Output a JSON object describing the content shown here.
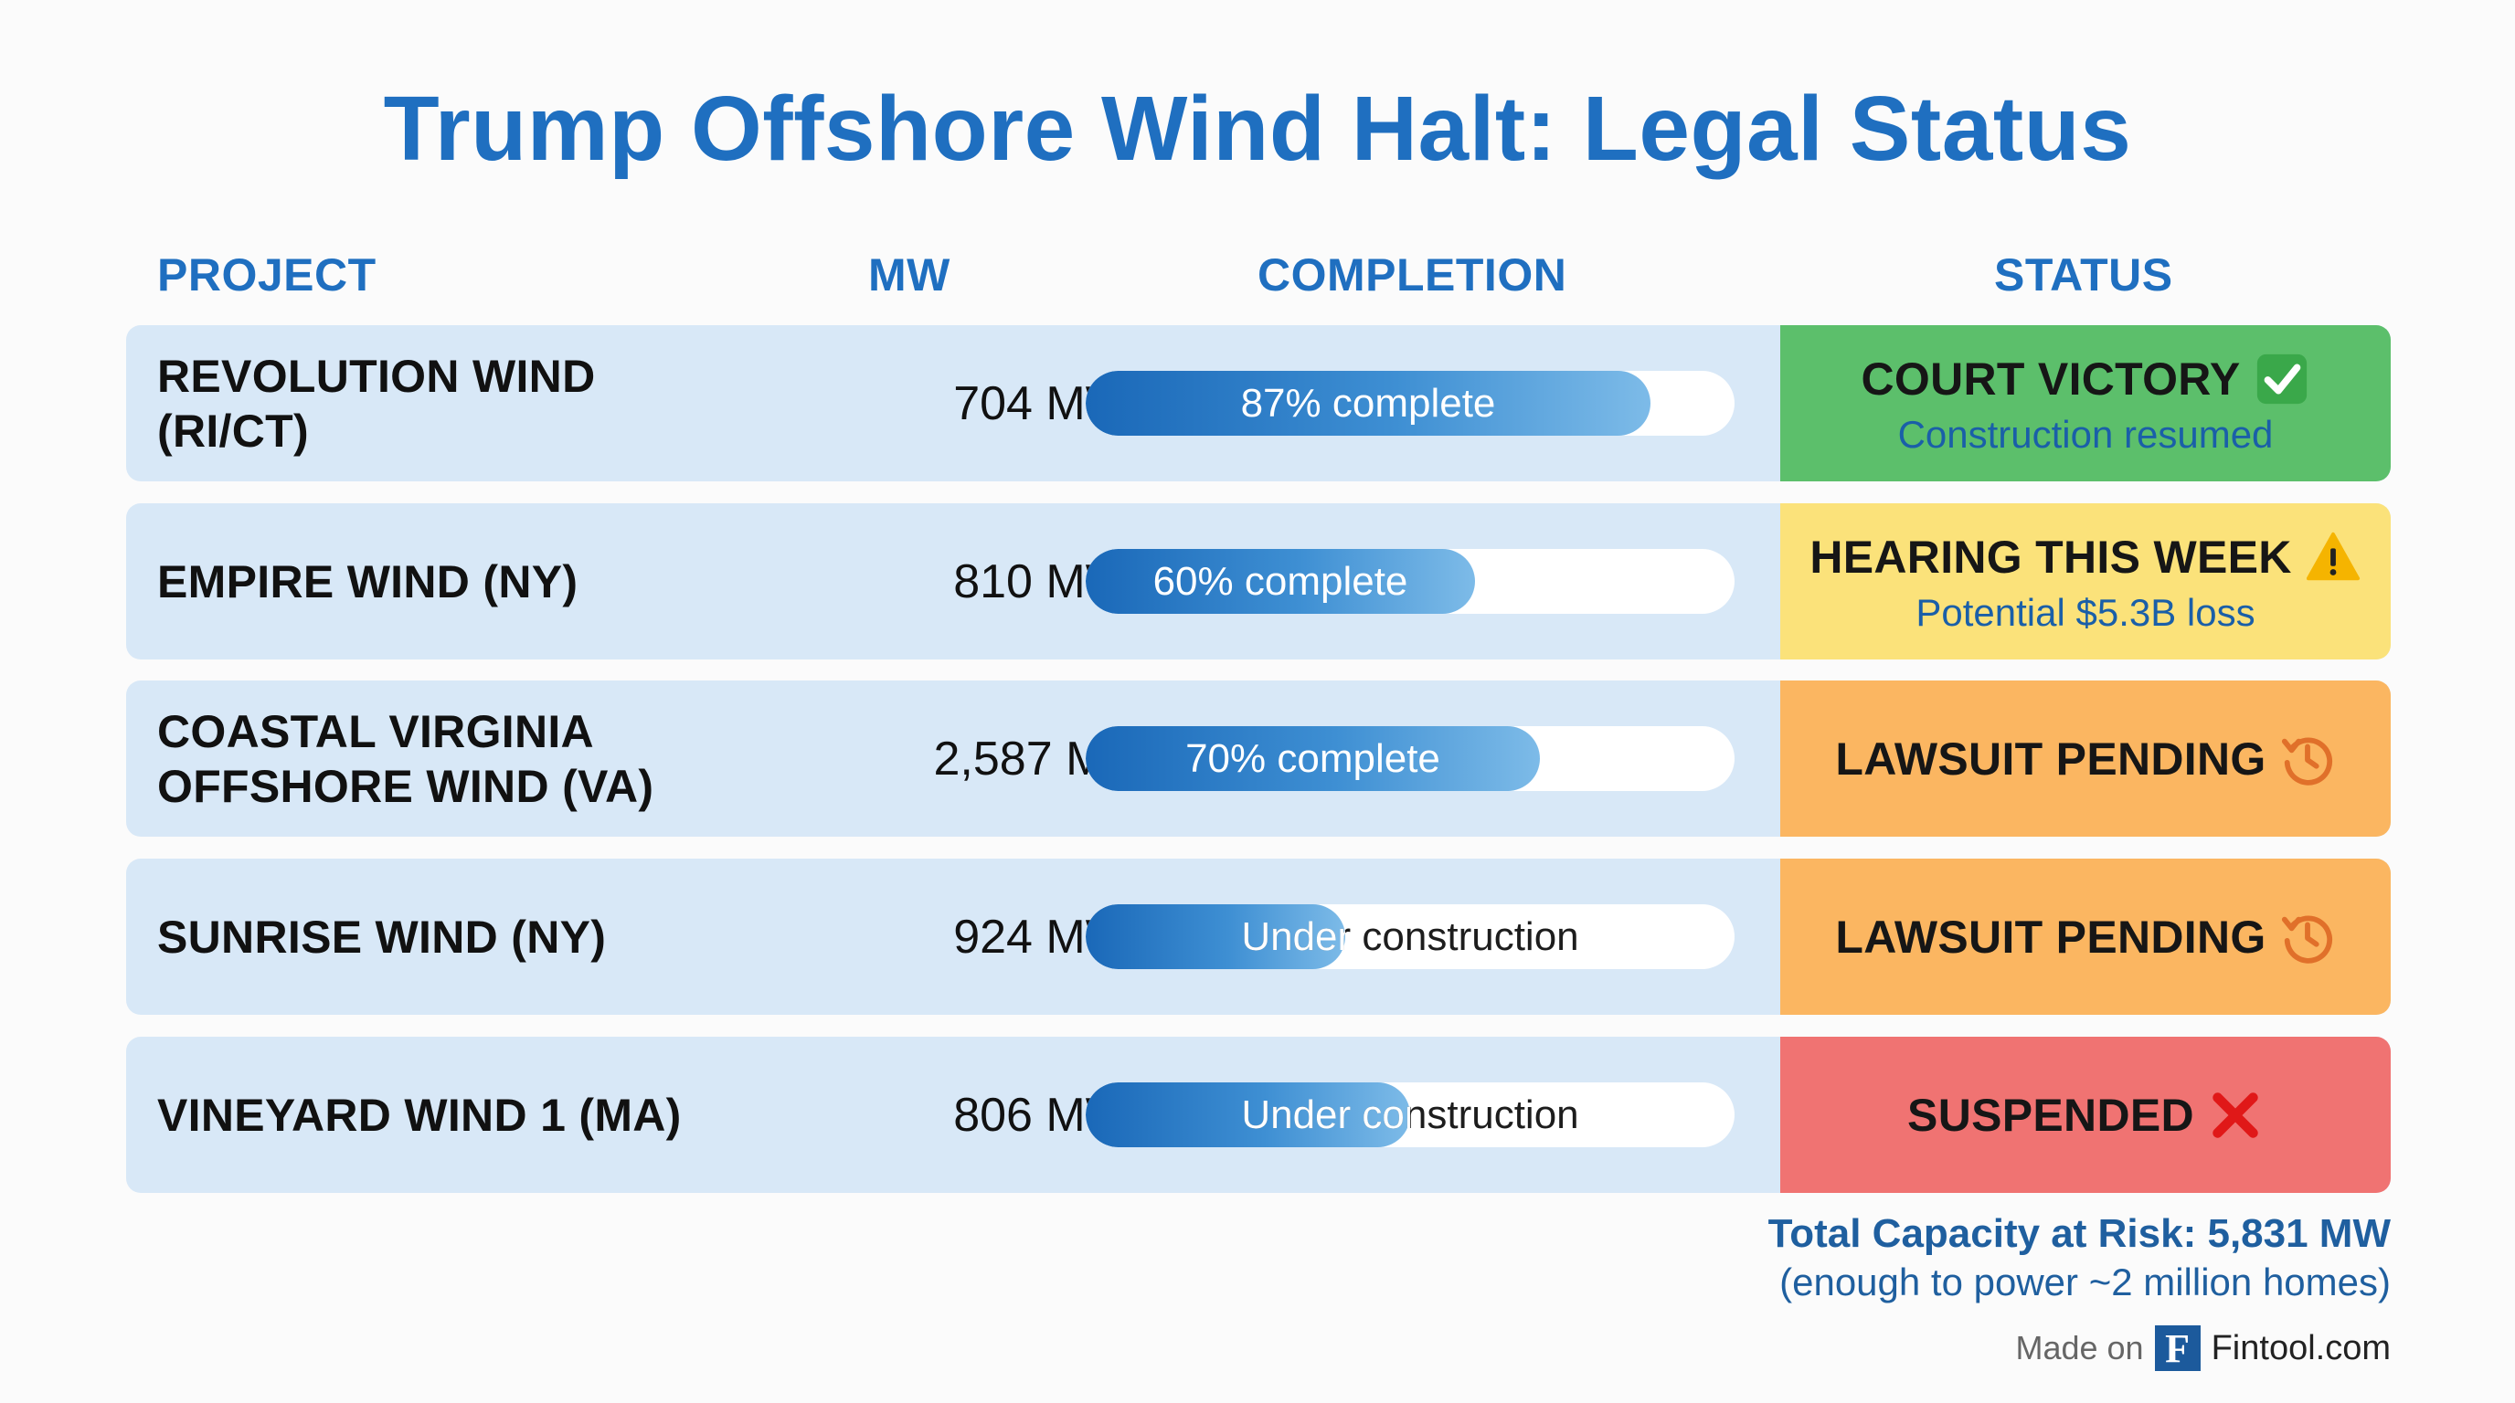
{
  "title": "Trump Offshore Wind Halt: Legal Status",
  "headers": {
    "project": "PROJECT",
    "mw": "MW",
    "completion": "COMPLETION",
    "status": "STATUS"
  },
  "chart_data": {
    "type": "table",
    "title": "Trump Offshore Wind Halt: Legal Status",
    "columns": [
      "PROJECT",
      "MW",
      "COMPLETION",
      "STATUS"
    ],
    "rows": [
      {
        "project_lines": [
          "REVOLUTION WIND",
          "(RI/CT)"
        ],
        "mw": "704 MW",
        "completion_pct": 87,
        "completion_label": "87% complete",
        "status": "COURT VICTORY",
        "status_icon": "check-icon",
        "status_sub": "Construction resumed",
        "status_color": "#5cbf6b",
        "sub_color": "#1a5fa8"
      },
      {
        "project_lines": [
          "EMPIRE WIND (NY)"
        ],
        "mw": "810 MW",
        "completion_pct": 60,
        "completion_label": "60% complete",
        "status": "HEARING THIS WEEK",
        "status_icon": "warning-icon",
        "status_sub": "Potential $5.3B loss",
        "status_color": "#fbe27a",
        "sub_color": "#1a5fa8"
      },
      {
        "project_lines": [
          "COASTAL VIRGINIA",
          "OFFSHORE WIND (VA)"
        ],
        "mw": "2,587 MW",
        "completion_pct": 70,
        "completion_label": "70% complete",
        "status": "LAWSUIT PENDING",
        "status_icon": "history-clock-icon",
        "status_sub": "",
        "status_color": "#fbb661",
        "sub_color": "#1a5fa8"
      },
      {
        "project_lines": [
          "SUNRISE WIND (NY)"
        ],
        "mw": "924 MW",
        "completion_pct": 40,
        "completion_label": "Under construction",
        "status": "LAWSUIT PENDING",
        "status_icon": "history-clock-icon",
        "status_sub": "",
        "status_color": "#fbb661",
        "sub_color": "#1a5fa8"
      },
      {
        "project_lines": [
          "VINEYARD WIND 1 (MA)"
        ],
        "mw": "806 MW",
        "completion_pct": 50,
        "completion_label": "Under construction",
        "status": "SUSPENDED",
        "status_icon": "cross-icon",
        "status_sub": "",
        "status_color": "#f07372",
        "sub_color": "#1a5fa8"
      }
    ]
  },
  "footer": {
    "total": "Total Capacity at Risk: 5,831 MW",
    "total_sub": "(enough to power ~2 million homes)",
    "made_on": "Made on",
    "logo_letter": "F",
    "brand": "Fintool.com"
  },
  "colors": {
    "accent": "#1f6fc0",
    "row_bg": "#d8e8f7"
  }
}
